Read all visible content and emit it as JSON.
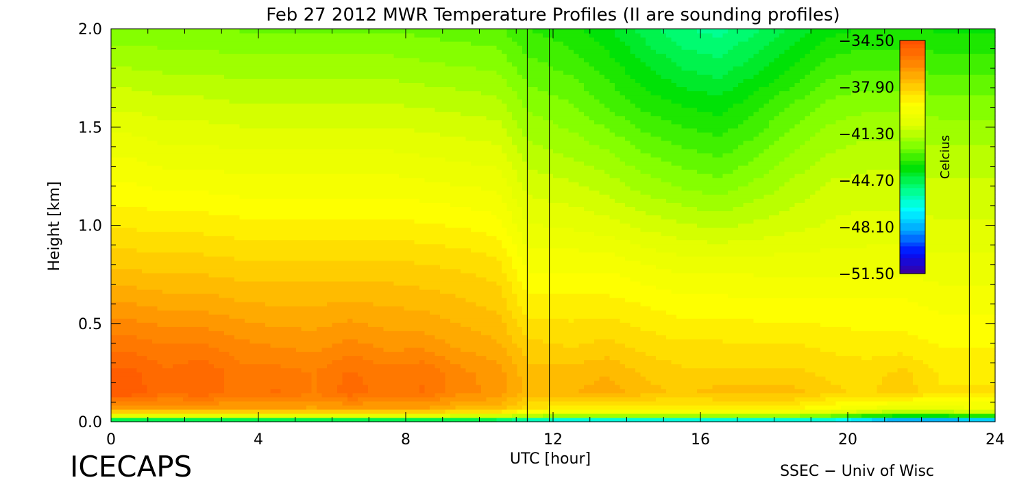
{
  "chart_data": {
    "type": "heatmap",
    "title": "Feb 27 2012 MWR Temperature Profiles (II are sounding profiles)",
    "xlabel": "UTC [hour]",
    "ylabel": "Height [km]",
    "xlim": [
      0,
      24
    ],
    "ylim": [
      0,
      2.0
    ],
    "x_ticks": [
      0,
      4,
      8,
      12,
      16,
      20,
      24
    ],
    "y_ticks": [
      0.0,
      0.5,
      1.0,
      1.5,
      2.0
    ],
    "x_tick_labels": [
      "0",
      "4",
      "8",
      "12",
      "16",
      "20",
      "24"
    ],
    "y_tick_labels": [
      "0.0",
      "0.5",
      "1.0",
      "1.5",
      "2.0"
    ],
    "colorbar": {
      "label": "Celcius",
      "range": [
        -51.5,
        -34.5
      ],
      "ticks": [
        -34.5,
        -37.9,
        -41.3,
        -44.7,
        -48.1,
        -51.5
      ],
      "tick_labels": [
        "−34.50",
        "−37.90",
        "−41.30",
        "−44.70",
        "−48.10",
        "−51.50"
      ],
      "placement": "top-right inside plot"
    },
    "sounding_times_hour": [
      11.3,
      11.9,
      23.3
    ],
    "colormap": [
      "#3a00a0",
      "#0010ff",
      "#00a0ff",
      "#00ffff",
      "#00ff80",
      "#00e000",
      "#80ff00",
      "#e0ff00",
      "#ffff00",
      "#ffc000",
      "#ff8000",
      "#ff5000"
    ],
    "times_hour": [
      0,
      0.5,
      1.5,
      2.5,
      3.5,
      4.5,
      5.5,
      6.5,
      7.5,
      8.5,
      9.5,
      10.5,
      11.3,
      12.5,
      13.5,
      14.5,
      15.5,
      16.5,
      17.5,
      18.5,
      19.5,
      20.5,
      21.5,
      22.5,
      23.3,
      24
    ],
    "heights_km": [
      0.0,
      0.03,
      0.06,
      0.15,
      0.25,
      0.4,
      0.6,
      0.8,
      1.0,
      1.2,
      1.4,
      1.6,
      1.8,
      2.0
    ],
    "temperature_c": [
      [
        -47.0,
        -47.0,
        -47.0,
        -47.0,
        -47.0,
        -47.0,
        -47.0,
        -47.0,
        -47.0,
        -47.0,
        -47.0,
        -47.0,
        -48.0,
        -49.0,
        -49.0,
        -49.0,
        -48.5,
        -48.5,
        -48.5,
        -48.5,
        -48.5,
        -49.5,
        -50.5,
        -50.5,
        -50.0,
        -50.0
      ],
      [
        -40.5,
        -40.5,
        -40.5,
        -40.5,
        -40.5,
        -40.5,
        -40.5,
        -40.5,
        -40.5,
        -40.5,
        -41.0,
        -41.0,
        -41.5,
        -42.0,
        -42.0,
        -42.0,
        -42.0,
        -42.0,
        -42.0,
        -42.0,
        -42.5,
        -43.5,
        -44.0,
        -44.0,
        -43.5,
        -43.5
      ],
      [
        -37.0,
        -37.0,
        -37.0,
        -37.0,
        -37.0,
        -37.0,
        -37.0,
        -37.0,
        -37.0,
        -37.0,
        -37.5,
        -37.5,
        -38.5,
        -39.0,
        -39.0,
        -39.0,
        -39.0,
        -39.0,
        -39.0,
        -39.0,
        -39.5,
        -40.0,
        -40.5,
        -40.5,
        -40.0,
        -40.0
      ],
      [
        -34.8,
        -34.8,
        -35.5,
        -35.2,
        -35.8,
        -35.5,
        -36.0,
        -35.3,
        -35.8,
        -35.5,
        -36.3,
        -36.5,
        -37.5,
        -37.3,
        -37.0,
        -37.5,
        -37.8,
        -37.5,
        -37.5,
        -37.5,
        -38.0,
        -38.2,
        -37.8,
        -38.5,
        -38.5,
        -38.5
      ],
      [
        -35.0,
        -35.0,
        -35.5,
        -35.2,
        -35.8,
        -35.8,
        -36.0,
        -35.5,
        -35.8,
        -35.6,
        -36.3,
        -36.6,
        -37.5,
        -37.5,
        -37.3,
        -37.8,
        -38.0,
        -38.0,
        -38.0,
        -38.0,
        -38.2,
        -38.3,
        -38.0,
        -38.6,
        -38.6,
        -38.6
      ],
      [
        -35.8,
        -35.8,
        -36.0,
        -36.0,
        -36.3,
        -36.5,
        -36.6,
        -36.3,
        -36.6,
        -36.6,
        -37.0,
        -37.2,
        -38.0,
        -38.2,
        -38.0,
        -38.3,
        -38.5,
        -38.5,
        -38.5,
        -38.5,
        -38.7,
        -38.8,
        -38.8,
        -39.0,
        -39.0,
        -39.0
      ],
      [
        -36.8,
        -36.8,
        -37.0,
        -37.0,
        -37.2,
        -37.3,
        -37.3,
        -37.2,
        -37.3,
        -37.4,
        -37.6,
        -37.8,
        -38.8,
        -38.8,
        -38.8,
        -39.0,
        -39.2,
        -39.2,
        -39.3,
        -39.3,
        -39.3,
        -39.3,
        -39.3,
        -39.5,
        -39.5,
        -39.5
      ],
      [
        -37.8,
        -37.8,
        -37.9,
        -37.9,
        -38.0,
        -38.0,
        -38.0,
        -38.0,
        -38.0,
        -38.1,
        -38.2,
        -38.4,
        -39.5,
        -39.5,
        -39.5,
        -39.8,
        -40.0,
        -40.0,
        -40.0,
        -40.0,
        -40.0,
        -40.0,
        -40.0,
        -40.1,
        -40.1,
        -40.1
      ],
      [
        -38.6,
        -38.6,
        -38.7,
        -38.7,
        -38.8,
        -38.8,
        -38.8,
        -38.8,
        -38.8,
        -38.9,
        -39.0,
        -39.2,
        -40.2,
        -40.3,
        -40.5,
        -40.8,
        -41.0,
        -41.2,
        -41.0,
        -40.8,
        -40.6,
        -40.5,
        -40.5,
        -40.6,
        -40.6,
        -40.6
      ],
      [
        -39.3,
        -39.3,
        -39.5,
        -39.5,
        -39.6,
        -39.6,
        -39.6,
        -39.6,
        -39.6,
        -39.7,
        -39.8,
        -39.9,
        -40.8,
        -41.0,
        -41.3,
        -41.7,
        -42.0,
        -42.2,
        -41.8,
        -41.4,
        -41.0,
        -40.9,
        -40.9,
        -41.0,
        -41.0,
        -41.0
      ],
      [
        -40.0,
        -40.0,
        -40.2,
        -40.2,
        -40.3,
        -40.3,
        -40.3,
        -40.3,
        -40.3,
        -40.4,
        -40.5,
        -40.6,
        -41.4,
        -41.7,
        -42.0,
        -42.5,
        -42.8,
        -43.0,
        -42.6,
        -42.0,
        -41.6,
        -41.4,
        -41.4,
        -41.5,
        -41.5,
        -41.5
      ],
      [
        -40.7,
        -40.7,
        -40.9,
        -40.9,
        -41.0,
        -41.0,
        -41.0,
        -41.0,
        -41.0,
        -41.1,
        -41.2,
        -41.3,
        -42.0,
        -42.3,
        -42.8,
        -43.3,
        -43.6,
        -43.8,
        -43.3,
        -42.7,
        -42.2,
        -42.0,
        -42.0,
        -42.1,
        -42.1,
        -42.1
      ],
      [
        -41.5,
        -41.5,
        -41.6,
        -41.6,
        -41.7,
        -41.7,
        -41.7,
        -41.7,
        -41.7,
        -41.8,
        -41.9,
        -42.0,
        -42.6,
        -42.9,
        -43.4,
        -44.0,
        -44.5,
        -44.7,
        -44.2,
        -43.6,
        -43.0,
        -42.8,
        -42.8,
        -42.9,
        -42.9,
        -42.9
      ],
      [
        -42.2,
        -42.2,
        -42.3,
        -42.3,
        -42.4,
        -42.4,
        -42.4,
        -42.4,
        -42.4,
        -42.5,
        -42.6,
        -42.7,
        -43.2,
        -43.5,
        -44.0,
        -44.7,
        -45.3,
        -45.5,
        -45.0,
        -44.4,
        -43.8,
        -43.6,
        -43.6,
        -43.7,
        -43.7,
        -43.7
      ]
    ]
  },
  "watermark": {
    "left": "ICECAPS",
    "right": "SSEC − Univ of Wisc"
  }
}
